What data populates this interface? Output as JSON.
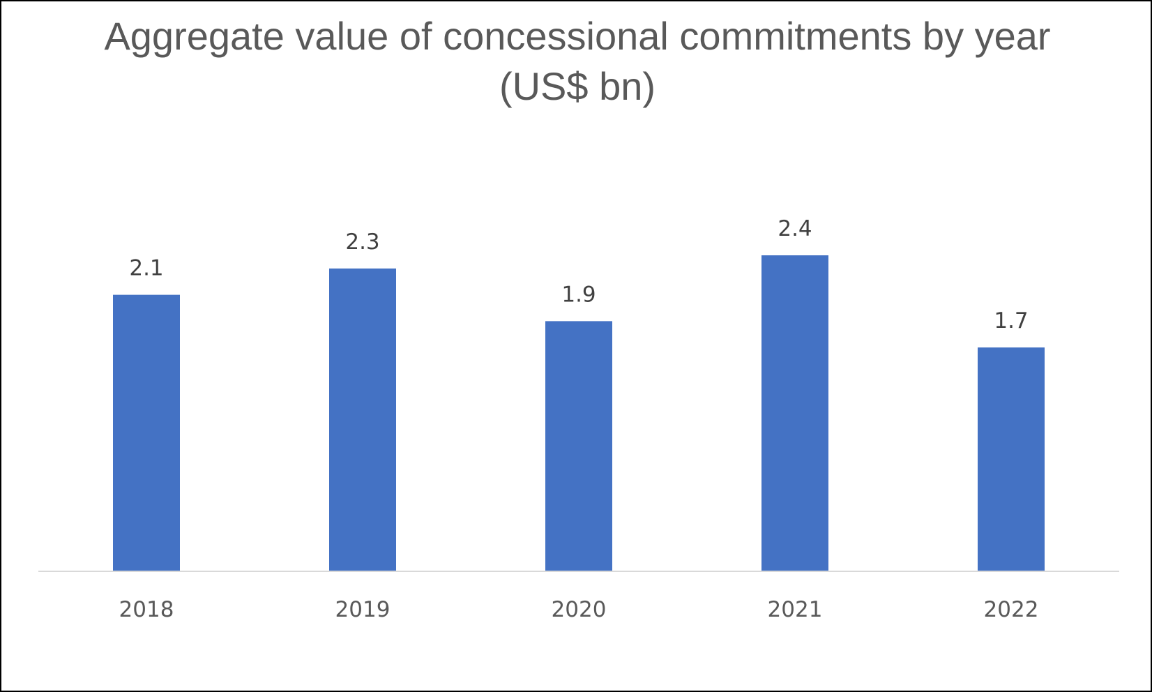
{
  "chart_data": {
    "type": "bar",
    "title": "Aggregate value of concessional commitments by year (US$ bn)",
    "categories": [
      "2018",
      "2019",
      "2020",
      "2021",
      "2022"
    ],
    "values": [
      2.1,
      2.3,
      1.9,
      2.4,
      1.7
    ],
    "data_labels": [
      "2.1",
      "2.3",
      "1.9",
      "2.4",
      "1.7"
    ],
    "xlabel": "",
    "ylabel": "",
    "ylim": [
      0,
      2.7
    ],
    "grid": false,
    "legend": "none",
    "colors": {
      "bar": "#4472C4",
      "axis": "#D9D9D9",
      "title": "#595959"
    }
  }
}
